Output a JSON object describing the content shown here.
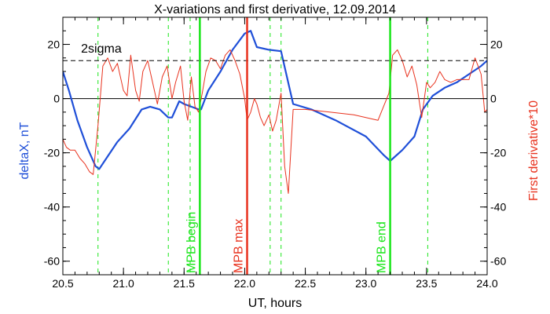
{
  "chart_data": {
    "type": "line",
    "title": "X-variations and first derivative, 12.09.2014",
    "xlabel": "UT, hours",
    "ylabel_left": "deltaX, nT",
    "ylabel_right": "First derivative*10",
    "xlim": [
      20.5,
      24.0
    ],
    "ylim": [
      -65,
      30
    ],
    "x_ticks": [
      "20.5",
      "21.0",
      "21.5",
      "22.0",
      "22.5",
      "23.0",
      "23.5",
      "24.0"
    ],
    "y_ticks": [
      "-60",
      "-40",
      "-20",
      "0",
      "20"
    ],
    "grid": false,
    "colors": {
      "deltaX": "#1f4fd8",
      "derivative": "#e8321e",
      "mpb": "#19e619",
      "mpb_max": "#e8321e",
      "threshold": "#000000"
    },
    "series": [
      {
        "name": "deltaX, nT",
        "color": "#1f4fd8",
        "x": [
          20.5,
          20.55,
          20.62,
          20.7,
          20.77,
          20.8,
          20.86,
          20.95,
          21.05,
          21.15,
          21.22,
          21.3,
          21.37,
          21.4,
          21.46,
          21.5,
          21.56,
          21.62,
          21.64,
          21.7,
          21.8,
          21.9,
          22.0,
          22.05,
          22.1,
          22.2,
          22.3,
          22.4,
          22.55,
          22.75,
          23.0,
          23.15,
          23.2,
          23.3,
          23.4,
          23.47,
          23.55,
          23.65,
          23.75,
          23.85,
          23.95,
          24.0
        ],
        "values": [
          10,
          3,
          -8,
          -18,
          -25,
          -26,
          -22,
          -16,
          -11,
          -4,
          -3,
          -4,
          -7,
          -7,
          -1,
          -2,
          -3,
          -4,
          -4,
          3,
          10,
          18,
          24,
          25,
          19,
          18,
          17.5,
          -2,
          -4,
          -8,
          -14,
          -21,
          -23,
          -19,
          -14,
          -4,
          1,
          4,
          6,
          9,
          12,
          14
        ]
      },
      {
        "name": "First derivative*10",
        "color": "#e8321e",
        "x": [
          20.5,
          20.53,
          20.56,
          20.6,
          20.64,
          20.68,
          20.72,
          20.75,
          20.79,
          20.83,
          20.87,
          20.91,
          20.95,
          21.0,
          21.03,
          21.06,
          21.1,
          21.13,
          21.16,
          21.2,
          21.24,
          21.28,
          21.32,
          21.36,
          21.4,
          21.43,
          21.47,
          21.5,
          21.53,
          21.56,
          21.59,
          21.62,
          21.65,
          21.68,
          21.72,
          21.76,
          21.8,
          21.84,
          21.88,
          21.92,
          21.96,
          22.0,
          22.02,
          22.05,
          22.08,
          22.1,
          22.13,
          22.16,
          22.2,
          22.23,
          22.26,
          22.3,
          22.33,
          22.36,
          22.4,
          22.5,
          22.7,
          22.9,
          23.1,
          23.19,
          23.22,
          23.26,
          23.3,
          23.34,
          23.38,
          23.42,
          23.46,
          23.5,
          23.53,
          23.57,
          23.61,
          23.65,
          23.7,
          23.75,
          23.8,
          23.85,
          23.9,
          23.95,
          23.98,
          24.0
        ],
        "values": [
          -15,
          -18,
          -19,
          -19,
          -22,
          -24,
          -27,
          -28,
          -10,
          12,
          15,
          10,
          13,
          3,
          1,
          16,
          3,
          -1,
          10,
          14,
          6,
          -2,
          8,
          12,
          0,
          6,
          12,
          -1,
          -8,
          8,
          -3,
          -5,
          2,
          10,
          15,
          14,
          11,
          16,
          18,
          14,
          9,
          0,
          -8,
          -5,
          0,
          -2,
          -7,
          -10,
          -6,
          -12,
          -8,
          2,
          -25,
          -35,
          -4,
          -4,
          -5,
          -6,
          -8,
          2,
          16,
          18,
          14,
          8,
          12,
          5,
          -7,
          6,
          4,
          6,
          10,
          7,
          6,
          7,
          7,
          7,
          15,
          9,
          -5,
          -4
        ]
      },
      {
        "name": "2sigma",
        "color": "#000000",
        "x": [
          20.5,
          24.0
        ],
        "values": [
          14,
          14
        ]
      }
    ],
    "vertical_markers": [
      {
        "x": 21.63,
        "label": "MPB begin",
        "color": "#19e619",
        "style": "solid"
      },
      {
        "x": 22.02,
        "label": "MPB max",
        "color": "#e8321e",
        "style": "solid"
      },
      {
        "x": 23.2,
        "label": "MPB end",
        "color": "#19e619",
        "style": "solid"
      }
    ],
    "dashed_markers": [
      20.79,
      21.37,
      21.55,
      22.21,
      22.3,
      23.51
    ],
    "annotations": [
      {
        "text": "2sigma",
        "x": 20.65,
        "y": 17
      }
    ]
  }
}
